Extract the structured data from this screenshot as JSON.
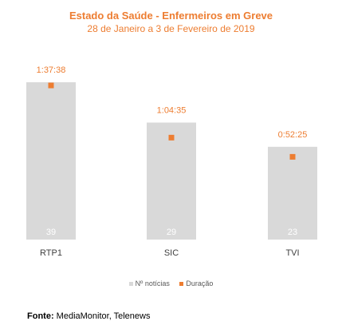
{
  "chart_data": {
    "type": "bar",
    "title": "Estado da Saúde - Enfermeiros em Greve",
    "subtitle": "28 de Janeiro a 3 de Fevereiro de 2019",
    "categories": [
      "RTP1",
      "SIC",
      "TVI"
    ],
    "series": [
      {
        "name": "Nº notícias",
        "type": "bar",
        "values": [
          39,
          29,
          23
        ],
        "color": "#D9D9D9",
        "labels": [
          "39",
          "29",
          "23"
        ]
      },
      {
        "name": "Duração",
        "type": "scatter",
        "values": [
          "1:37:38",
          "1:04:35",
          "0:52:25"
        ],
        "seconds": [
          5858,
          3875,
          3145
        ],
        "color": "#ED7D31"
      }
    ],
    "legend_position": "bottom",
    "grid": false
  },
  "source": {
    "label": "Fonte:",
    "text": " MediaMonitor, Telenews"
  }
}
